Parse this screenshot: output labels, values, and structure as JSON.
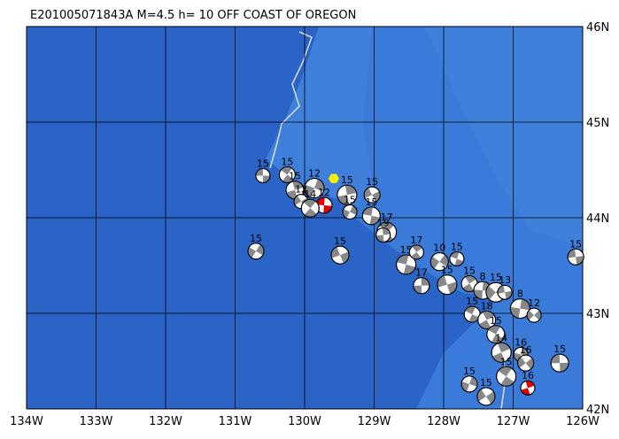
{
  "map": {
    "title": "E201005071843A M=4.5 h= 10 OFF COAST OF OREGON",
    "xlim": [
      -134,
      -126
    ],
    "ylim": [
      42,
      46
    ],
    "xticks": [
      {
        "value": -134,
        "label": "134W"
      },
      {
        "value": -133,
        "label": "133W"
      },
      {
        "value": -132,
        "label": "132W"
      },
      {
        "value": -131,
        "label": "131W"
      },
      {
        "value": -130,
        "label": "130W"
      },
      {
        "value": -129,
        "label": "129W"
      },
      {
        "value": -128,
        "label": "128W"
      },
      {
        "value": -127,
        "label": "127W"
      },
      {
        "value": -126,
        "label": "126W"
      }
    ],
    "yticks": [
      {
        "value": 42,
        "label": "42N"
      },
      {
        "value": 43,
        "label": "43N"
      },
      {
        "value": 44,
        "label": "44N"
      },
      {
        "value": 45,
        "label": "45N"
      },
      {
        "value": 46,
        "label": "46N"
      }
    ],
    "epicenter": {
      "lon": -129.58,
      "lat": 44.41,
      "color": "#ffee00"
    },
    "events": [
      {
        "lon": -130.6,
        "lat": 44.44,
        "depth": 15,
        "color": "#888888"
      },
      {
        "lon": -130.25,
        "lat": 44.45,
        "depth": 15,
        "color": "#888888"
      },
      {
        "lon": -130.14,
        "lat": 44.29,
        "depth": 15,
        "color": "#888888"
      },
      {
        "lon": -129.86,
        "lat": 44.31,
        "depth": 12,
        "color": "#888888"
      },
      {
        "lon": -130.05,
        "lat": 44.17,
        "depth": 12,
        "color": "#888888"
      },
      {
        "lon": -129.72,
        "lat": 44.13,
        "depth": 12,
        "color": "#e00000"
      },
      {
        "lon": -129.92,
        "lat": 44.1,
        "depth": 14,
        "color": "#888888"
      },
      {
        "lon": -129.39,
        "lat": 44.24,
        "depth": 15,
        "color": "#888888"
      },
      {
        "lon": -129.35,
        "lat": 44.06,
        "depth": 15,
        "color": "#888888"
      },
      {
        "lon": -129.03,
        "lat": 44.24,
        "depth": 15,
        "color": "#888888"
      },
      {
        "lon": -129.04,
        "lat": 44.02,
        "depth": 15,
        "color": "#888888"
      },
      {
        "lon": -128.82,
        "lat": 43.85,
        "depth": 17,
        "color": "#888888"
      },
      {
        "lon": -128.87,
        "lat": 43.82,
        "depth": 19,
        "color": "#888888"
      },
      {
        "lon": -130.7,
        "lat": 43.65,
        "depth": 15,
        "color": "#888888"
      },
      {
        "lon": -129.49,
        "lat": 43.61,
        "depth": 15,
        "color": "#888888"
      },
      {
        "lon": -128.54,
        "lat": 43.51,
        "depth": 15,
        "color": "#888888"
      },
      {
        "lon": -128.39,
        "lat": 43.64,
        "depth": 17,
        "color": "#888888"
      },
      {
        "lon": -128.32,
        "lat": 43.29,
        "depth": 17,
        "color": "#888888"
      },
      {
        "lon": -128.06,
        "lat": 43.54,
        "depth": 10,
        "color": "#888888"
      },
      {
        "lon": -127.95,
        "lat": 43.3,
        "depth": 15,
        "color": "#888888"
      },
      {
        "lon": -127.81,
        "lat": 43.57,
        "depth": 15,
        "color": "#888888"
      },
      {
        "lon": -127.63,
        "lat": 43.31,
        "depth": 15,
        "color": "#888888"
      },
      {
        "lon": -127.44,
        "lat": 43.24,
        "depth": 8,
        "color": "#888888"
      },
      {
        "lon": -127.25,
        "lat": 43.22,
        "depth": 15,
        "color": "#888888"
      },
      {
        "lon": -127.12,
        "lat": 43.22,
        "depth": 13,
        "color": "#888888"
      },
      {
        "lon": -127.59,
        "lat": 42.99,
        "depth": 15,
        "color": "#888888"
      },
      {
        "lon": -127.38,
        "lat": 42.93,
        "depth": 18,
        "color": "#888888"
      },
      {
        "lon": -126.9,
        "lat": 43.05,
        "depth": 8,
        "color": "#888888"
      },
      {
        "lon": -126.7,
        "lat": 42.98,
        "depth": 12,
        "color": "#888888"
      },
      {
        "lon": -126.1,
        "lat": 43.59,
        "depth": 15,
        "color": "#888888"
      },
      {
        "lon": -127.25,
        "lat": 42.78,
        "depth": 15,
        "color": "#888888"
      },
      {
        "lon": -127.17,
        "lat": 42.59,
        "depth": 14,
        "color": "#888888"
      },
      {
        "lon": -126.89,
        "lat": 42.57,
        "depth": 16,
        "color": "#888888"
      },
      {
        "lon": -126.82,
        "lat": 42.48,
        "depth": 16,
        "color": "#888888"
      },
      {
        "lon": -126.33,
        "lat": 42.48,
        "depth": 15,
        "color": "#888888"
      },
      {
        "lon": -127.1,
        "lat": 42.34,
        "depth": 15,
        "color": "#888888"
      },
      {
        "lon": -126.79,
        "lat": 42.22,
        "depth": 16,
        "color": "#e00000"
      },
      {
        "lon": -127.63,
        "lat": 42.26,
        "depth": 15,
        "color": "#888888"
      },
      {
        "lon": -127.39,
        "lat": 42.13,
        "depth": 15,
        "color": "#888888"
      }
    ]
  }
}
